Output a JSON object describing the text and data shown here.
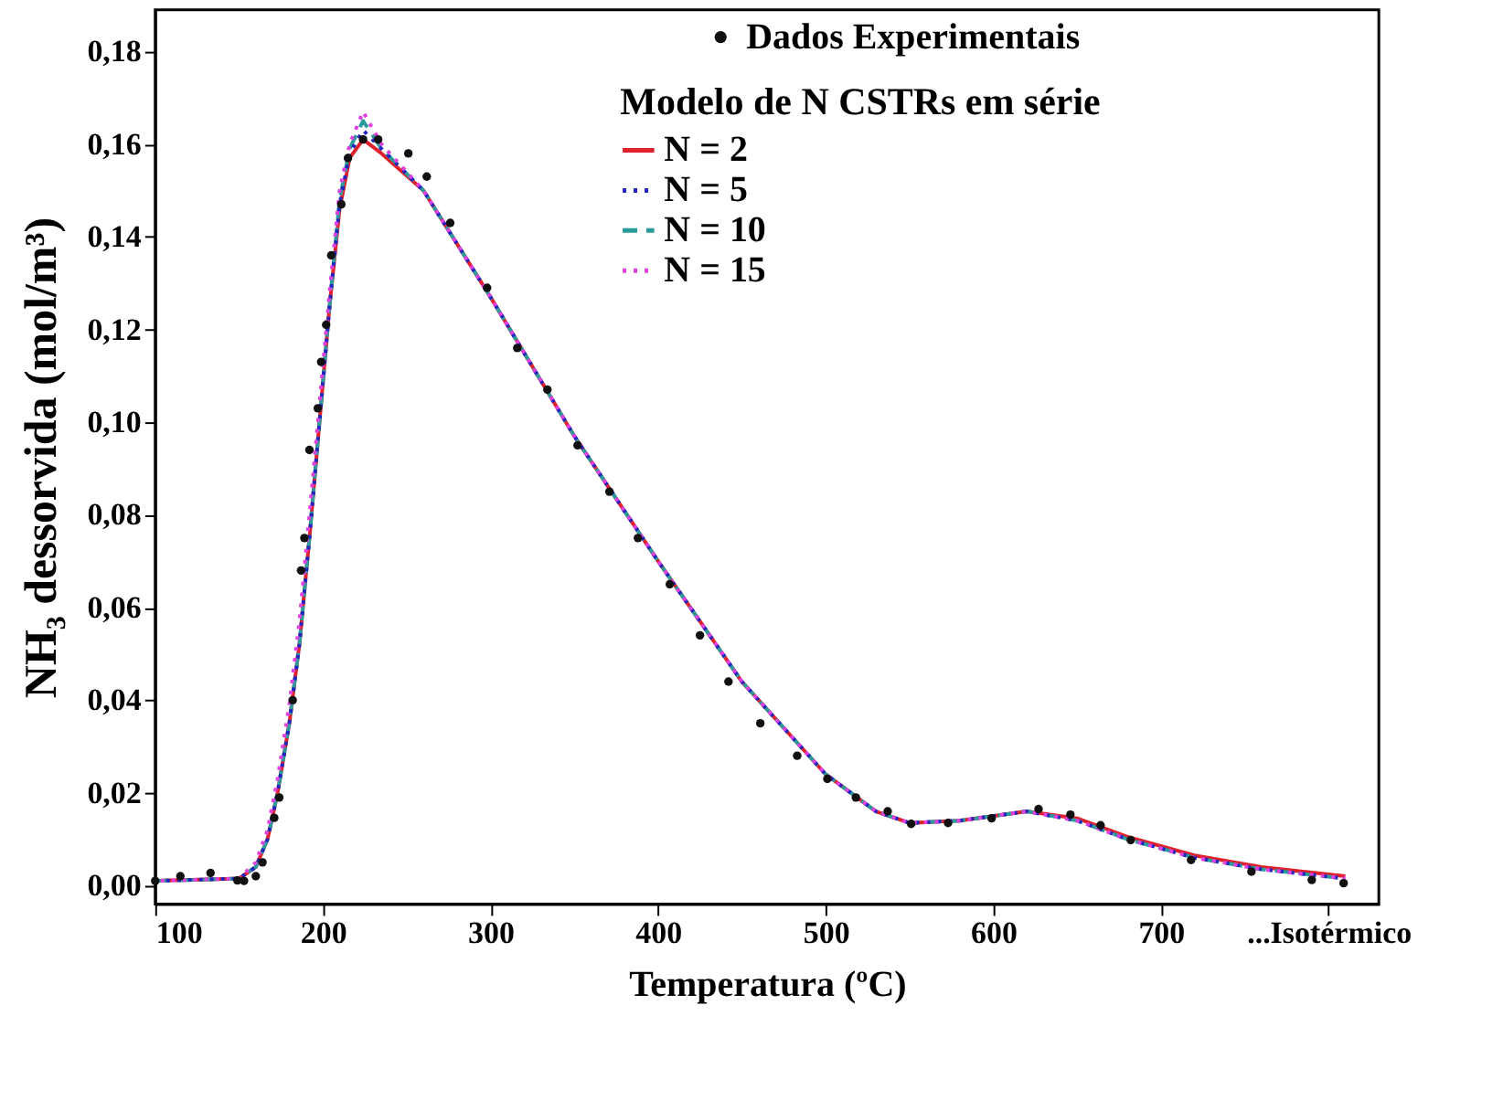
{
  "chart_data": {
    "type": "scatter",
    "xlabel": "Temperatura (ºC)",
    "ylabel": "NH₃ dessorvida (mol/m³)",
    "legend_title": "Modelo de N CSTRs em série",
    "xlim": [
      100,
      830
    ],
    "ylim": [
      -0.004,
      0.189
    ],
    "xticks": [
      100,
      200,
      300,
      400,
      500,
      600,
      700,
      {
        "value": 800,
        "label": "...Isotérmico"
      }
    ],
    "yticks": [
      {
        "value": 0,
        "label": "0,00"
      },
      {
        "value": 0.02,
        "label": "0,02"
      },
      {
        "value": 0.04,
        "label": "0,04"
      },
      {
        "value": 0.06,
        "label": "0,06"
      },
      {
        "value": 0.08,
        "label": "0,08"
      },
      {
        "value": 0.1,
        "label": "0,10"
      },
      {
        "value": 0.12,
        "label": "0,12"
      },
      {
        "value": 0.14,
        "label": "0,14"
      },
      {
        "value": 0.16,
        "label": "0,16"
      },
      {
        "value": 0.18,
        "label": "0,18"
      }
    ],
    "grid": false,
    "legend": "top right",
    "series": [
      {
        "name": "Dados Experimentais",
        "marker": "circle",
        "color": "#111111",
        "x": [
          100,
          115,
          133,
          149,
          153,
          160,
          164,
          171,
          174,
          182,
          187,
          189,
          192,
          197,
          199,
          202,
          205,
          211,
          215,
          224,
          233,
          251,
          262,
          276,
          298,
          316,
          334,
          352,
          371,
          388,
          407,
          425,
          442,
          461,
          483,
          501,
          518,
          537,
          551,
          573,
          599,
          627,
          646,
          664,
          682,
          718,
          754,
          790,
          809
        ],
        "values": [
          0.001,
          0.002,
          0.0027,
          0.0011,
          0.001,
          0.002,
          0.005,
          0.0146,
          0.019,
          0.04,
          0.068,
          0.075,
          0.094,
          0.103,
          0.113,
          0.121,
          0.136,
          0.147,
          0.157,
          0.161,
          0.161,
          0.158,
          0.153,
          0.143,
          0.129,
          0.116,
          0.107,
          0.095,
          0.085,
          0.075,
          0.065,
          0.054,
          0.044,
          0.035,
          0.028,
          0.023,
          0.019,
          0.016,
          0.0133,
          0.0135,
          0.0145,
          0.0165,
          0.0153,
          0.013,
          0.0098,
          0.0055,
          0.003,
          0.0012,
          0.0005
        ]
      },
      {
        "name": "N =  2",
        "type": "line",
        "line_style": "solid",
        "color": "#e0202a",
        "x": [
          100,
          150,
          160,
          167,
          173,
          180,
          186,
          192,
          198,
          204,
          210,
          216,
          224,
          235,
          260,
          300,
          350,
          400,
          450,
          500,
          530,
          550,
          580,
          620,
          650,
          680,
          720,
          760,
          810
        ],
        "values": [
          0.001,
          0.0015,
          0.004,
          0.01,
          0.02,
          0.035,
          0.052,
          0.075,
          0.1,
          0.125,
          0.146,
          0.157,
          0.161,
          0.158,
          0.15,
          0.127,
          0.097,
          0.07,
          0.044,
          0.024,
          0.016,
          0.0135,
          0.014,
          0.016,
          0.0145,
          0.0105,
          0.0065,
          0.004,
          0.002
        ]
      },
      {
        "name": "N =  5",
        "type": "line",
        "line_style": "dotted",
        "color": "#2424c0",
        "x": [
          100,
          150,
          160,
          167,
          173,
          180,
          186,
          192,
          198,
          204,
          210,
          216,
          224,
          235,
          260,
          300,
          350,
          400,
          450,
          500,
          530,
          550,
          580,
          620,
          650,
          680,
          720,
          760,
          810
        ],
        "values": [
          0.001,
          0.0015,
          0.004,
          0.01,
          0.02,
          0.035,
          0.052,
          0.075,
          0.1,
          0.125,
          0.147,
          0.158,
          0.163,
          0.159,
          0.15,
          0.127,
          0.097,
          0.07,
          0.044,
          0.024,
          0.016,
          0.0135,
          0.014,
          0.016,
          0.014,
          0.01,
          0.006,
          0.0035,
          0.0015
        ]
      },
      {
        "name": "N = 10",
        "type": "line",
        "line_style": "dashed",
        "color": "#2a9a9a",
        "x": [
          100,
          150,
          160,
          167,
          173,
          180,
          186,
          192,
          198,
          204,
          210,
          216,
          224,
          235,
          260,
          300,
          350,
          400,
          450,
          500,
          530,
          550,
          580,
          620,
          650,
          680,
          720,
          760,
          810
        ],
        "values": [
          0.001,
          0.0015,
          0.004,
          0.01,
          0.02,
          0.035,
          0.052,
          0.075,
          0.1,
          0.125,
          0.148,
          0.159,
          0.165,
          0.159,
          0.15,
          0.127,
          0.097,
          0.07,
          0.044,
          0.024,
          0.016,
          0.0135,
          0.014,
          0.016,
          0.014,
          0.01,
          0.006,
          0.0035,
          0.0015
        ]
      },
      {
        "name": "N = 15",
        "type": "line",
        "line_style": "dotted",
        "color": "#e040e0",
        "x": [
          100,
          150,
          160,
          167,
          173,
          180,
          186,
          192,
          198,
          204,
          210,
          216,
          224,
          235,
          260,
          300,
          350,
          400,
          450,
          500,
          530,
          550,
          580,
          620,
          650,
          680,
          720,
          760,
          810
        ],
        "values": [
          0.001,
          0.0015,
          0.005,
          0.012,
          0.023,
          0.039,
          0.057,
          0.08,
          0.104,
          0.128,
          0.15,
          0.16,
          0.167,
          0.16,
          0.15,
          0.127,
          0.097,
          0.07,
          0.044,
          0.024,
          0.016,
          0.0135,
          0.014,
          0.016,
          0.014,
          0.01,
          0.006,
          0.0035,
          0.0015
        ]
      }
    ]
  }
}
